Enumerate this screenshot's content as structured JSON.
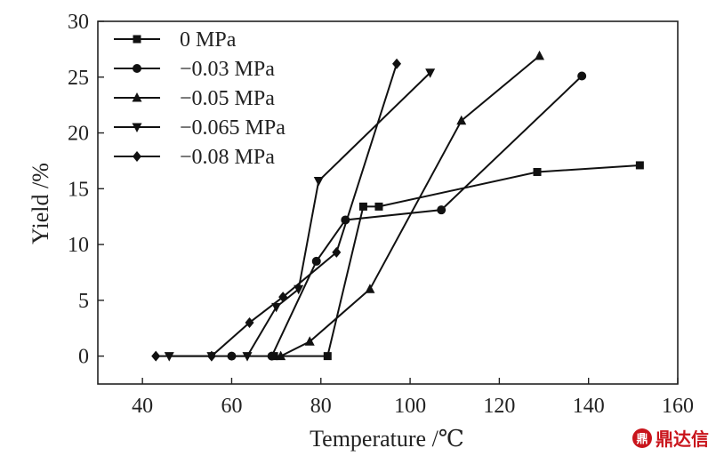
{
  "chart_data": {
    "type": "line",
    "title": "",
    "xlabel": "Temperature /℃",
    "ylabel": "Yield /%",
    "xlim": [
      30,
      160
    ],
    "ylim": [
      -2.5,
      30
    ],
    "xticks": [
      40,
      60,
      80,
      100,
      120,
      140,
      160
    ],
    "yticks": [
      0,
      5,
      10,
      15,
      20,
      25,
      30
    ],
    "grid": false,
    "legend_position": "top-left",
    "series": [
      {
        "name": "0 MPa",
        "marker": "square",
        "x": [
          69.5,
          81.5,
          89.5,
          93,
          128.5,
          151.5
        ],
        "y": [
          0,
          0,
          13.4,
          13.4,
          16.5,
          17.1
        ]
      },
      {
        "name": "−0.03 MPa",
        "marker": "circle",
        "x": [
          60,
          69,
          79,
          85.5,
          107,
          138.5
        ],
        "y": [
          0,
          0,
          8.5,
          12.2,
          13.1,
          25.1
        ]
      },
      {
        "name": "−0.05 MPa",
        "marker": "triangle-up",
        "x": [
          71,
          77.5,
          91,
          111.5,
          129
        ],
        "y": [
          0,
          1.3,
          6,
          21.1,
          26.9
        ]
      },
      {
        "name": "−0.065 MPa",
        "marker": "triangle-down",
        "x": [
          46,
          55.5,
          63.5,
          70,
          75,
          79.5,
          104.5
        ],
        "y": [
          0,
          0,
          0,
          4.4,
          6,
          15.7,
          25.4
        ]
      },
      {
        "name": "−0.08 MPa",
        "marker": "diamond",
        "x": [
          43,
          55.5,
          64,
          71.5,
          83.5,
          97
        ],
        "y": [
          0,
          0,
          3,
          5.3,
          9.3,
          26.2
        ]
      }
    ]
  },
  "watermark": {
    "icon_glyph": "鼎",
    "text": "鼎达信",
    "color": "#c9141b"
  }
}
